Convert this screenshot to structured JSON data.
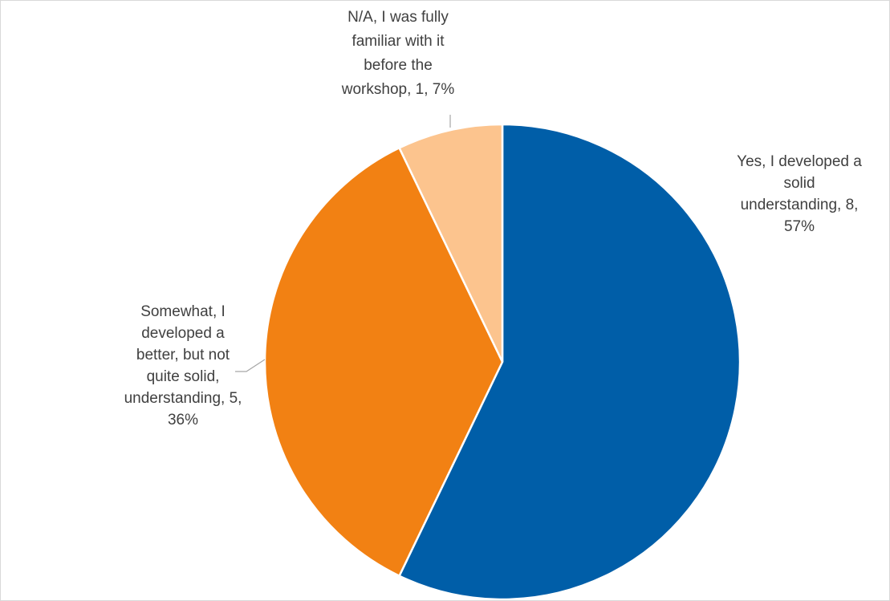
{
  "chart_data": {
    "type": "pie",
    "title": "",
    "start_angle_deg": 0,
    "direction": "clockwise",
    "slices": [
      {
        "label": "Yes, I developed a solid understanding",
        "value": 8,
        "percent": 57,
        "color": "#005ea8",
        "data_label_lines": [
          "Yes, I developed a",
          "solid",
          "understanding, 8,",
          "57%"
        ]
      },
      {
        "label": "Somewhat, I developed a better, but not quite solid, understanding",
        "value": 5,
        "percent": 36,
        "color": "#f28113",
        "data_label_lines": [
          "Somewhat, I",
          "developed a",
          "better, but not",
          "quite solid,",
          "understanding, 5,",
          "36%"
        ]
      },
      {
        "label": "N/A, I was fully familiar with it before the workshop",
        "value": 1,
        "percent": 7,
        "color": "#fcc48e",
        "data_label_lines": [
          "N/A, I was fully",
          "familiar with it",
          "before the",
          "workshop, 1, 7%"
        ]
      }
    ],
    "legend": "none"
  }
}
